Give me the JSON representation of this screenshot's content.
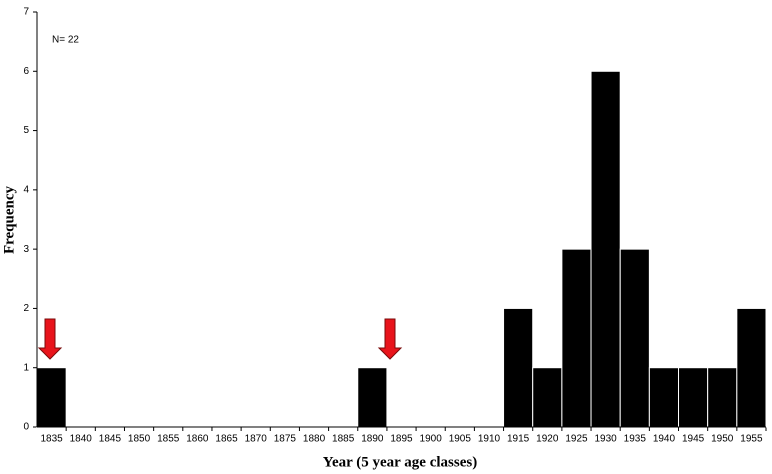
{
  "chart_data": {
    "type": "bar",
    "annotation": "N= 22",
    "xlabel": "Year (5 year age classes)",
    "ylabel": "Frequency",
    "categories": [
      "1835",
      "1840",
      "1845",
      "1850",
      "1855",
      "1860",
      "1865",
      "1870",
      "1875",
      "1880",
      "1885",
      "1890",
      "1895",
      "1900",
      "1905",
      "1910",
      "1915",
      "1920",
      "1925",
      "1930",
      "1935",
      "1940",
      "1945",
      "1950",
      "1955"
    ],
    "values": [
      1,
      0,
      0,
      0,
      0,
      0,
      0,
      0,
      0,
      0,
      0,
      1,
      0,
      0,
      0,
      0,
      2,
      1,
      3,
      6,
      3,
      1,
      1,
      1,
      2
    ],
    "color": "#000000",
    "ylim": [
      0,
      7
    ],
    "yticks": [
      0,
      1,
      2,
      3,
      4,
      5,
      6,
      7
    ],
    "grid": false
  }
}
